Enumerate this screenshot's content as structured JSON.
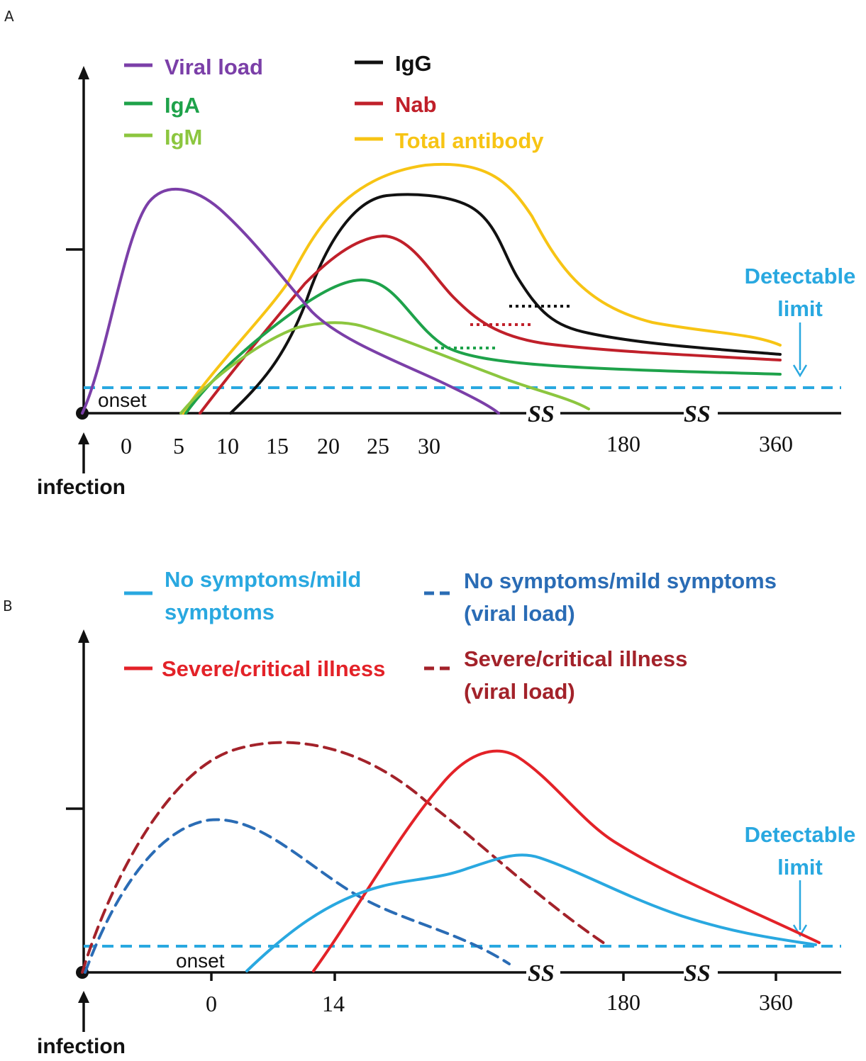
{
  "panel_a": {
    "letter": "A",
    "legend": [
      {
        "label": "Viral load",
        "color": "#7b3fa8"
      },
      {
        "label": "IgA",
        "color": "#1ea24a"
      },
      {
        "label": "IgM",
        "color": "#8cc63f"
      },
      {
        "label": "IgG",
        "color": "#111111"
      },
      {
        "label": "Nab",
        "color": "#c0202a"
      },
      {
        "label": "Total antibody",
        "color": "#f7c414"
      }
    ],
    "x_ticks": [
      "0",
      "5",
      "10",
      "15",
      "20",
      "25",
      "30",
      "180",
      "360"
    ],
    "onset_label": "onset",
    "infection_label": "infection",
    "break_symbol": "SS",
    "detectable_line1": "Detectable",
    "detectable_line2": "limit",
    "detectable_color": "#29a8e0"
  },
  "panel_b": {
    "letter": "B",
    "legend": [
      {
        "line1": "No symptoms/mild",
        "line2": "symptoms",
        "color": "#29a8e0",
        "style": "solid"
      },
      {
        "line1": "No symptoms/mild symptoms",
        "line2": "(viral load)",
        "color": "#2a6cb5",
        "style": "dashed"
      },
      {
        "line1": "Severe/critical illness",
        "line2": "",
        "color": "#e32228",
        "style": "solid"
      },
      {
        "line1": "Severe/critical illness",
        "line2": "(viral load)",
        "color": "#a3222a",
        "style": "dashed"
      }
    ],
    "x_ticks": [
      "0",
      "14",
      "180",
      "360"
    ],
    "onset_label": "onset",
    "infection_label": "infection",
    "break_symbol": "SS",
    "detectable_line1": "Detectable",
    "detectable_line2": "limit",
    "detectable_color": "#29a8e0"
  }
}
